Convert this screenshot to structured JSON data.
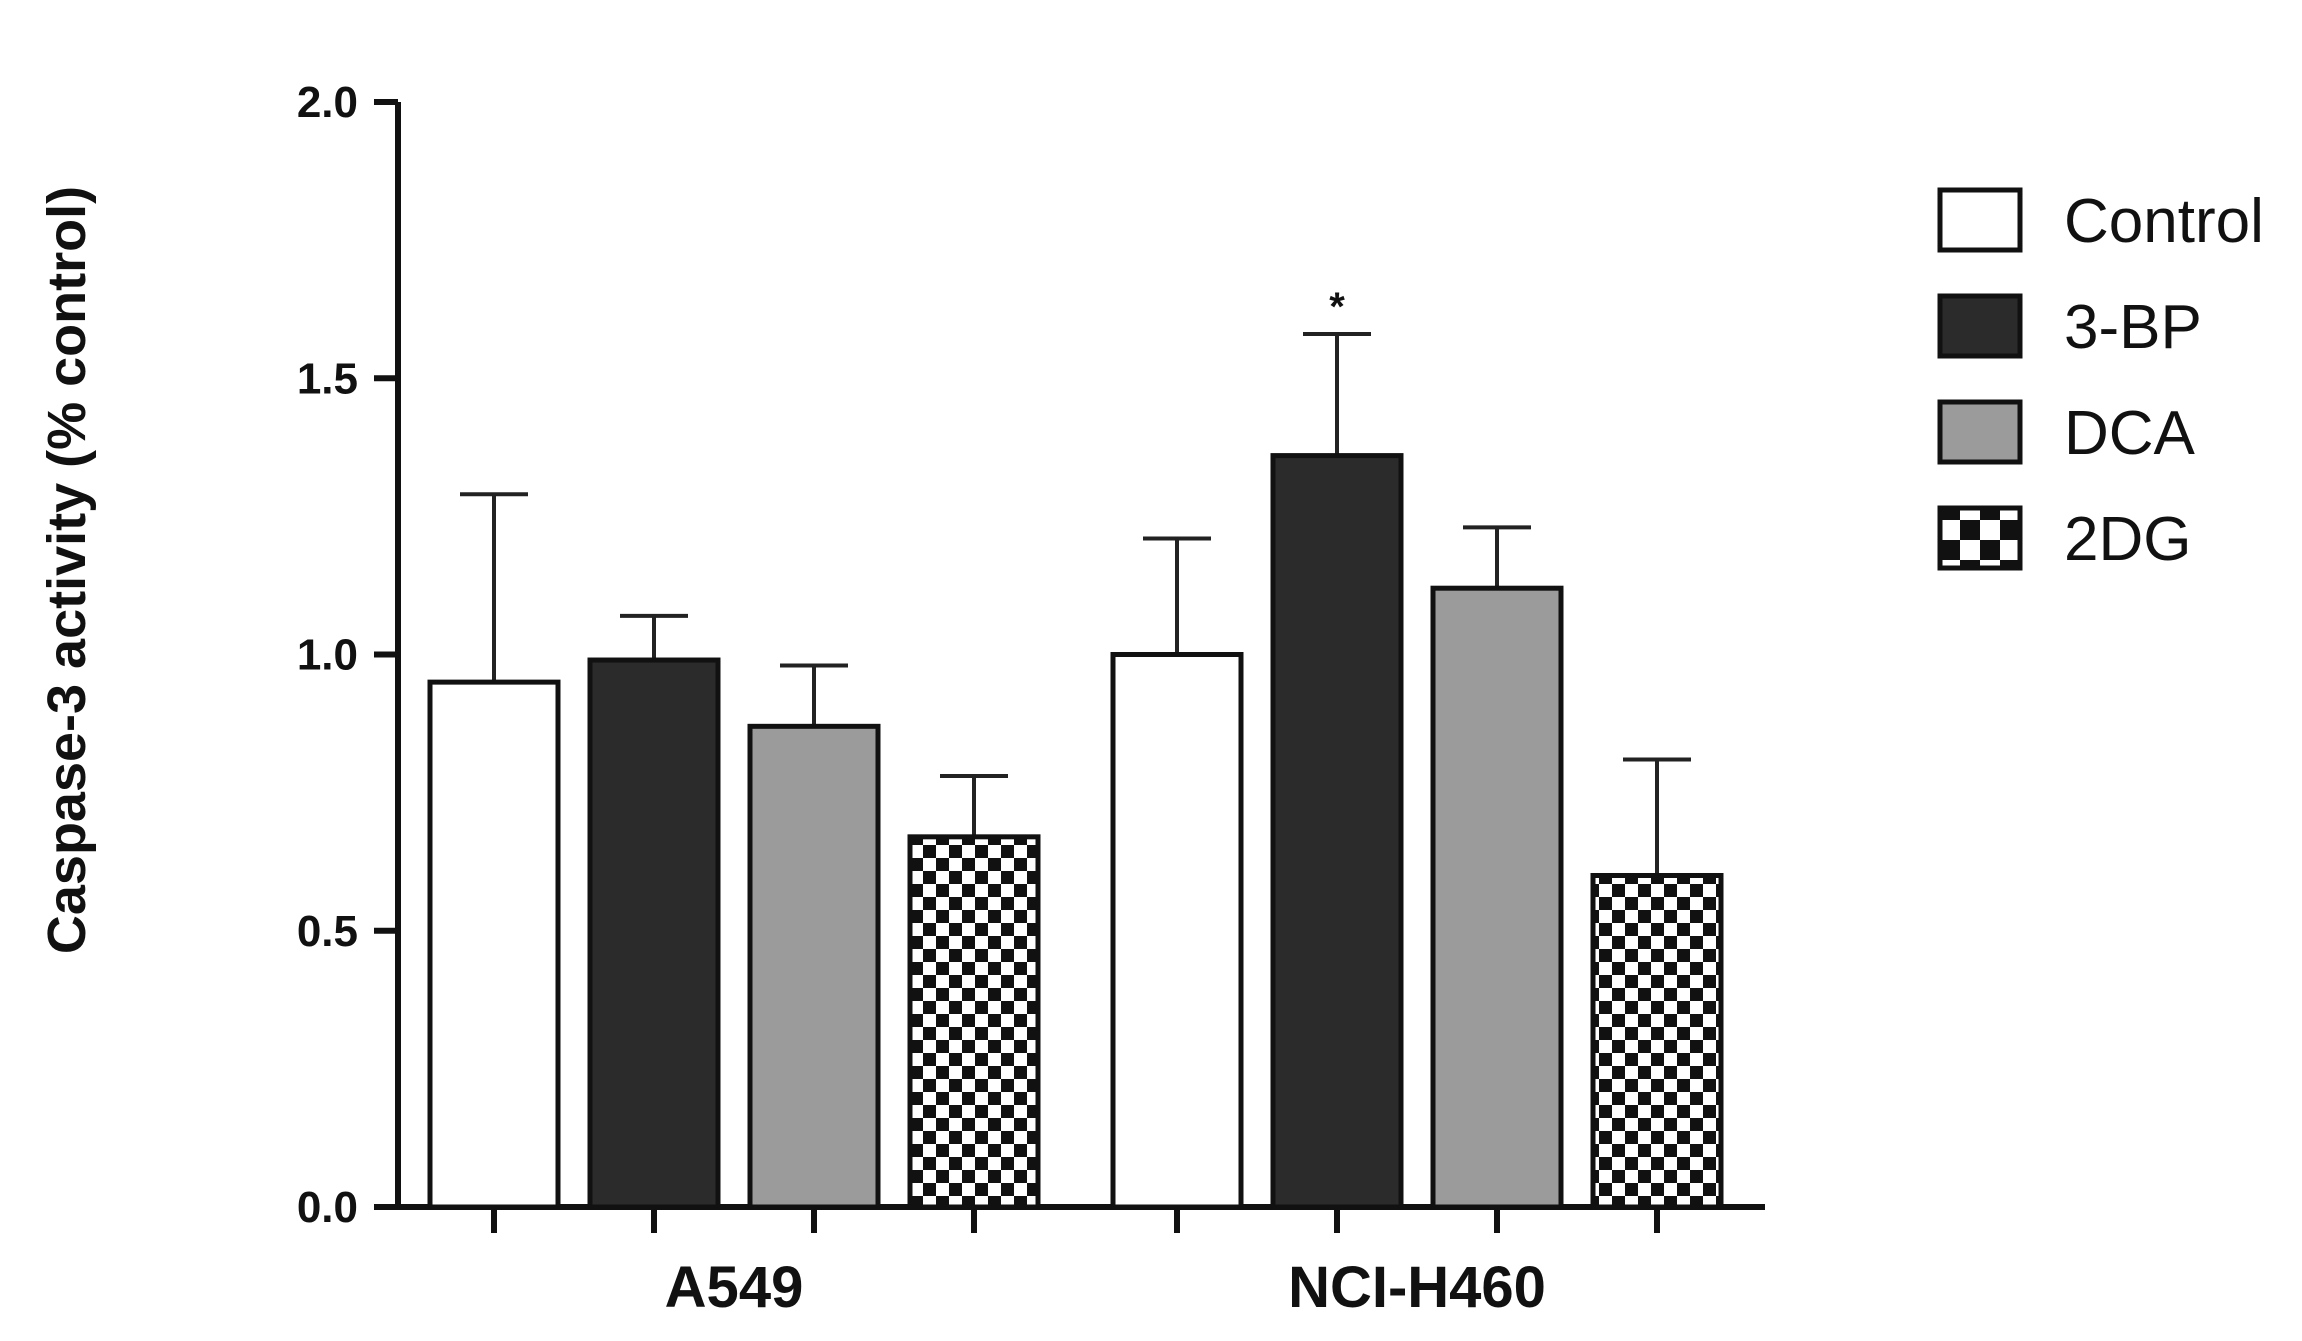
{
  "chart_data": {
    "type": "bar",
    "ylabel": "Caspase-3 activity (% control)",
    "xlabel": "",
    "ylim": [
      0,
      2.0
    ],
    "yticks": [
      "0.0",
      "0.5",
      "1.0",
      "1.5",
      "2.0"
    ],
    "categories": [
      "A549",
      "NCI-H460"
    ],
    "series": [
      {
        "name": "Control",
        "values": [
          0.95,
          1.0
        ],
        "errors": [
          0.34,
          0.21
        ],
        "fill": "#ffffff",
        "pattern": "none"
      },
      {
        "name": "3-BP",
        "values": [
          0.99,
          1.36
        ],
        "errors": [
          0.08,
          0.22
        ],
        "fill": "#2b2b2b",
        "pattern": "none"
      },
      {
        "name": "DCA",
        "values": [
          0.87,
          1.12
        ],
        "errors": [
          0.11,
          0.11
        ],
        "fill": "#9b9b9b",
        "pattern": "none"
      },
      {
        "name": "2DG",
        "values": [
          0.67,
          0.6
        ],
        "errors": [
          0.11,
          0.21
        ],
        "fill": "#ffffff",
        "pattern": "checker"
      }
    ],
    "annotations": [
      {
        "text": "*",
        "category": "NCI-H460",
        "series": "3-BP"
      }
    ],
    "legend_position": "right",
    "grid": false
  }
}
